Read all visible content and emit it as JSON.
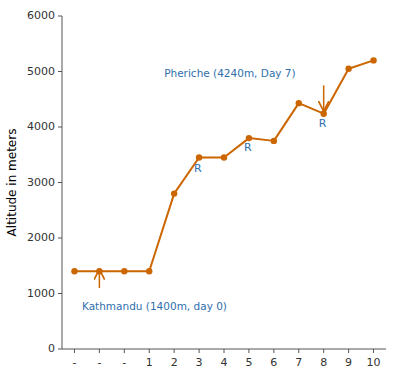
{
  "chart_data": {
    "type": "line",
    "categories": [
      "-",
      "-",
      "-",
      "1",
      "2",
      "3",
      "4",
      "5",
      "6",
      "7",
      "8",
      "9",
      "10"
    ],
    "values": [
      1400,
      1400,
      1400,
      1400,
      2800,
      3450,
      3450,
      3800,
      3750,
      4430,
      4240,
      5050,
      5200
    ],
    "color": "#CC6600",
    "marker": "circle",
    "y_label": "Altitude in meters",
    "ylim": [
      0,
      6000
    ],
    "yticks": [
      0,
      1000,
      2000,
      3000,
      4000,
      5000,
      6000
    ],
    "grid": false,
    "annotations": [
      {
        "text": "Kathmandu (1400m, day 0)",
        "x": 0.3,
        "y": 850,
        "color": "#2F6FAD",
        "arrow_x": 1,
        "arrow_from": 1100,
        "arrow_to": 1420
      },
      {
        "text": "Pheriche (4240m, Day 7)",
        "x": 3.6,
        "y": 4900,
        "color": "#2F6FAD",
        "arrow_x": 10,
        "arrow_from": 4750,
        "arrow_to": 4300
      },
      {
        "text": "R",
        "x": 4.8,
        "y": 3250,
        "color": "#2F6FAD"
      },
      {
        "text": "R",
        "x": 6.8,
        "y": 3620,
        "color": "#2F6FAD"
      },
      {
        "text": "R",
        "x": 9.8,
        "y": 4050,
        "color": "#2F6FAD"
      }
    ]
  }
}
